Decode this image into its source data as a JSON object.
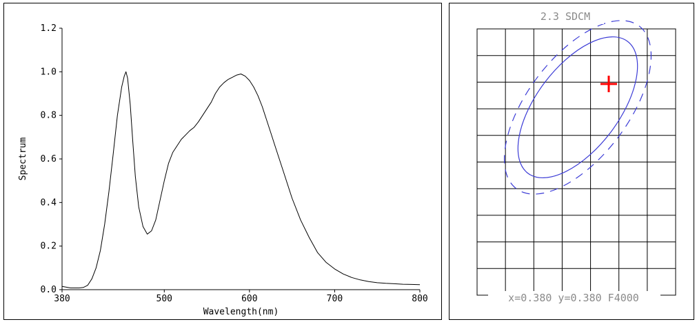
{
  "chart_data": [
    {
      "type": "line",
      "xlabel": "Wavelength(nm)",
      "ylabel": "Spectrum",
      "xlim": [
        380,
        800
      ],
      "ylim": [
        0,
        1.2
      ],
      "x_ticks": [
        "380",
        "500",
        "600",
        "700",
        "800"
      ],
      "y_ticks": [
        "0.0",
        "0.2",
        "0.4",
        "0.6",
        "0.8",
        "1.0",
        "1.2"
      ],
      "grid": false,
      "series": [
        {
          "x": [
            380,
            390,
            400,
            405,
            410,
            415,
            420,
            425,
            430,
            435,
            440,
            445,
            450,
            453,
            455,
            457,
            460,
            463,
            466,
            470,
            475,
            480,
            485,
            490,
            495,
            500,
            505,
            510,
            515,
            520,
            525,
            530,
            535,
            540,
            545,
            550,
            555,
            560,
            565,
            570,
            575,
            580,
            585,
            590,
            595,
            600,
            605,
            610,
            615,
            620,
            625,
            630,
            640,
            650,
            660,
            670,
            680,
            690,
            700,
            710,
            720,
            730,
            740,
            750,
            760,
            770,
            780,
            790,
            800
          ],
          "y": [
            0.015,
            0.008,
            0.008,
            0.01,
            0.02,
            0.05,
            0.1,
            0.18,
            0.3,
            0.45,
            0.62,
            0.8,
            0.93,
            0.98,
            1.0,
            0.97,
            0.85,
            0.68,
            0.52,
            0.38,
            0.29,
            0.255,
            0.27,
            0.32,
            0.41,
            0.5,
            0.58,
            0.63,
            0.66,
            0.69,
            0.71,
            0.73,
            0.745,
            0.77,
            0.8,
            0.83,
            0.86,
            0.9,
            0.93,
            0.95,
            0.965,
            0.975,
            0.985,
            0.99,
            0.98,
            0.96,
            0.93,
            0.89,
            0.84,
            0.78,
            0.72,
            0.66,
            0.54,
            0.42,
            0.32,
            0.24,
            0.17,
            0.125,
            0.095,
            0.072,
            0.056,
            0.045,
            0.037,
            0.032,
            0.029,
            0.027,
            0.025,
            0.024,
            0.023
          ]
        }
      ]
    },
    {
      "type": "scatter",
      "title": "2.3 SDCM",
      "caption": "x=0.380 y=0.380 F4000",
      "grid": true,
      "grid_columns": 7,
      "grid_rows": 10,
      "marker": {
        "label": "+",
        "color": "#ff0000"
      },
      "ellipse_color": "#3b3bd6"
    }
  ]
}
